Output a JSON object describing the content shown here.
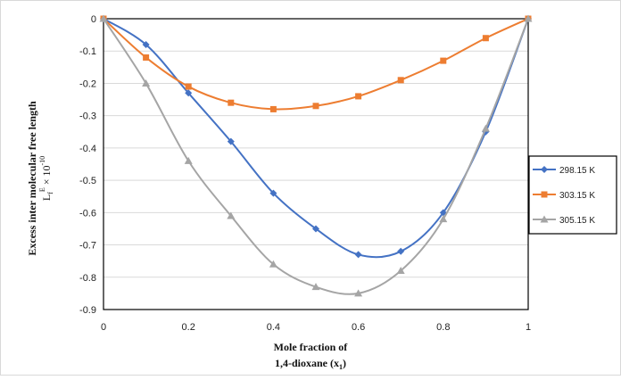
{
  "chart_data": {
    "type": "line",
    "xlabel_line1": "Mole fraction of",
    "xlabel_line2": "1,4-dioxane (x",
    "xlabel_sub": "1",
    "xlabel_end": ")",
    "ylabel_line1": "Excess inter molecular free length",
    "ylabel_line2": "L",
    "ylabel_sub": "f",
    "ylabel_sup": "E",
    "ylabel_line2_end": " × 10",
    "ylabel_exp": "-10",
    "xlim": [
      0,
      1
    ],
    "ylim": [
      -0.9,
      0
    ],
    "x_ticks": [
      "0",
      "0.2",
      "0.4",
      "0.6",
      "0.8",
      "1"
    ],
    "x_tick_values": [
      0,
      0.2,
      0.4,
      0.6,
      0.8,
      1
    ],
    "y_ticks": [
      "0",
      "-0.1",
      "-0.2",
      "-0.3",
      "-0.4",
      "-0.5",
      "-0.6",
      "-0.7",
      "-0.8",
      "-0.9"
    ],
    "y_tick_values": [
      0,
      -0.1,
      -0.2,
      -0.3,
      -0.4,
      -0.5,
      -0.6,
      -0.7,
      -0.8,
      -0.9
    ],
    "grid": "horizontal",
    "legend_position": "right",
    "series": [
      {
        "name": "298.15 K",
        "color": "#4472C4",
        "marker": "diamond",
        "points": [
          [
            0,
            0
          ],
          [
            0.1,
            -0.08
          ],
          [
            0.2,
            -0.23
          ],
          [
            0.3,
            -0.38
          ],
          [
            0.4,
            -0.54
          ],
          [
            0.5,
            -0.65
          ],
          [
            0.6,
            -0.73
          ],
          [
            0.7,
            -0.72
          ],
          [
            0.8,
            -0.6
          ],
          [
            0.9,
            -0.35
          ],
          [
            1,
            0
          ]
        ]
      },
      {
        "name": "303.15 K",
        "color": "#ED7D31",
        "marker": "square",
        "points": [
          [
            0,
            0
          ],
          [
            0.1,
            -0.12
          ],
          [
            0.2,
            -0.21
          ],
          [
            0.3,
            -0.26
          ],
          [
            0.4,
            -0.28
          ],
          [
            0.5,
            -0.27
          ],
          [
            0.6,
            -0.24
          ],
          [
            0.7,
            -0.19
          ],
          [
            0.8,
            -0.13
          ],
          [
            0.9,
            -0.06
          ],
          [
            1,
            0
          ]
        ]
      },
      {
        "name": "305.15 K",
        "color": "#A5A5A5",
        "marker": "triangle",
        "points": [
          [
            0,
            0
          ],
          [
            0.1,
            -0.2
          ],
          [
            0.2,
            -0.44
          ],
          [
            0.3,
            -0.61
          ],
          [
            0.4,
            -0.76
          ],
          [
            0.5,
            -0.83
          ],
          [
            0.6,
            -0.85
          ],
          [
            0.7,
            -0.78
          ],
          [
            0.8,
            -0.62
          ],
          [
            0.9,
            -0.34
          ],
          [
            1,
            0
          ]
        ]
      }
    ]
  }
}
